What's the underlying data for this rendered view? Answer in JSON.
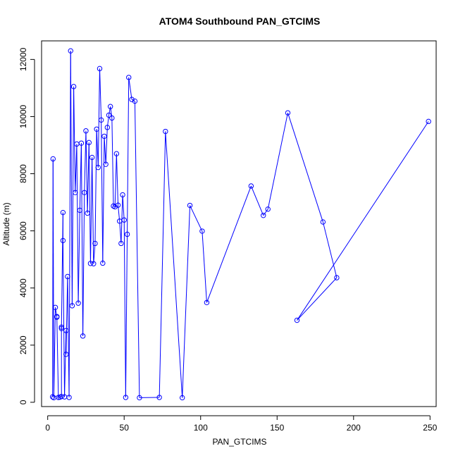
{
  "chart_data": {
    "type": "line",
    "title": "ATOM4 Southbound PAN_GTCIMS",
    "xlabel": "PAN_GTCIMS",
    "ylabel": "Altitude (m)",
    "xlim": [
      -4,
      254
    ],
    "ylim": [
      -150,
      12650
    ],
    "x_ticks": [
      0,
      50,
      100,
      150,
      200,
      250
    ],
    "x_tick_labels": [
      "0",
      "50",
      "100",
      "150",
      "200",
      "250"
    ],
    "y_ticks": [
      0,
      2000,
      4000,
      6000,
      8000,
      10000,
      12000
    ],
    "y_tick_labels": [
      "0",
      "2000",
      "4000",
      "6000",
      "8000",
      "10000",
      "12000"
    ],
    "grid": false,
    "legend": "none",
    "series_color": "#0000ff",
    "marker": "open-circle",
    "series": [
      {
        "x": [
          3.2,
          3.5,
          4,
          5,
          6,
          6,
          7,
          8,
          9,
          9,
          9,
          10,
          10,
          11,
          12,
          12,
          13,
          14,
          15,
          16,
          17,
          18,
          19,
          20,
          21,
          22,
          23,
          24,
          25,
          26,
          27,
          28,
          29,
          30,
          31,
          32,
          33,
          34,
          35,
          36,
          37,
          38,
          39,
          40,
          41,
          42,
          43,
          44,
          45,
          46,
          47,
          48,
          49,
          50,
          51,
          52,
          53,
          55,
          57,
          60,
          73,
          77,
          88,
          93,
          101,
          104,
          133,
          141,
          144,
          157,
          180,
          189,
          163,
          249
        ],
        "y": [
          190,
          8520,
          160,
          3320,
          3000,
          2980,
          170,
          180,
          200,
          2630,
          2580,
          6640,
          5660,
          190,
          2510,
          1680,
          4400,
          170,
          12300,
          3380,
          11050,
          7340,
          9040,
          3470,
          6720,
          9070,
          2320,
          7340,
          9500,
          6620,
          9090,
          4860,
          8570,
          4850,
          5560,
          9560,
          8220,
          11680,
          9880,
          4870,
          9310,
          8330,
          9620,
          10050,
          10350,
          9950,
          6870,
          6840,
          8700,
          6900,
          6340,
          5560,
          7260,
          6380,
          170,
          5880,
          11370,
          10600,
          10540,
          160,
          170,
          9480,
          160,
          6890,
          5990,
          3490,
          7570,
          6540,
          6760,
          10130,
          6310,
          4360,
          2870,
          9830
        ]
      }
    ]
  }
}
